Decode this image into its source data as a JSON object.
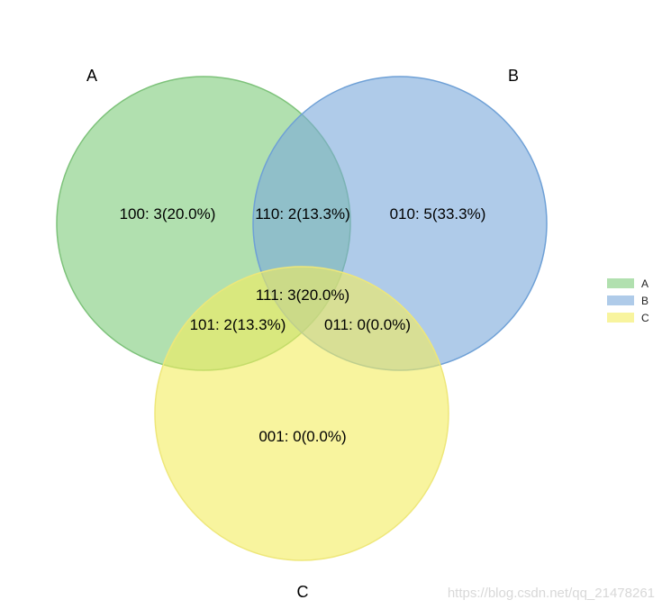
{
  "sets": [
    {
      "name": "A",
      "color": "#7dcc7a",
      "stroke": "#7dc27a"
    },
    {
      "name": "B",
      "color": "#7aa9db",
      "stroke": "#6ea0d6"
    },
    {
      "name": "C",
      "color": "#f3ec5e",
      "stroke": "#eee77a"
    }
  ],
  "regions": [
    {
      "code": "100",
      "label": "100: 3(20.0%)"
    },
    {
      "code": "110",
      "label": "110: 2(13.3%)"
    },
    {
      "code": "010",
      "label": "010: 5(33.3%)"
    },
    {
      "code": "111",
      "label": "111: 3(20.0%)"
    },
    {
      "code": "101",
      "label": "101: 2(13.3%)"
    },
    {
      "code": "011",
      "label": "011: 0(0.0%)"
    },
    {
      "code": "001",
      "label": "001: 0(0.0%)"
    }
  ],
  "legend": {
    "items": [
      {
        "label": "A",
        "color": "#7dcc7a"
      },
      {
        "label": "B",
        "color": "#7aa9db"
      },
      {
        "label": "C",
        "color": "#f3ec5e"
      }
    ]
  },
  "watermark": "https://blog.csdn.net/qq_21478261"
}
